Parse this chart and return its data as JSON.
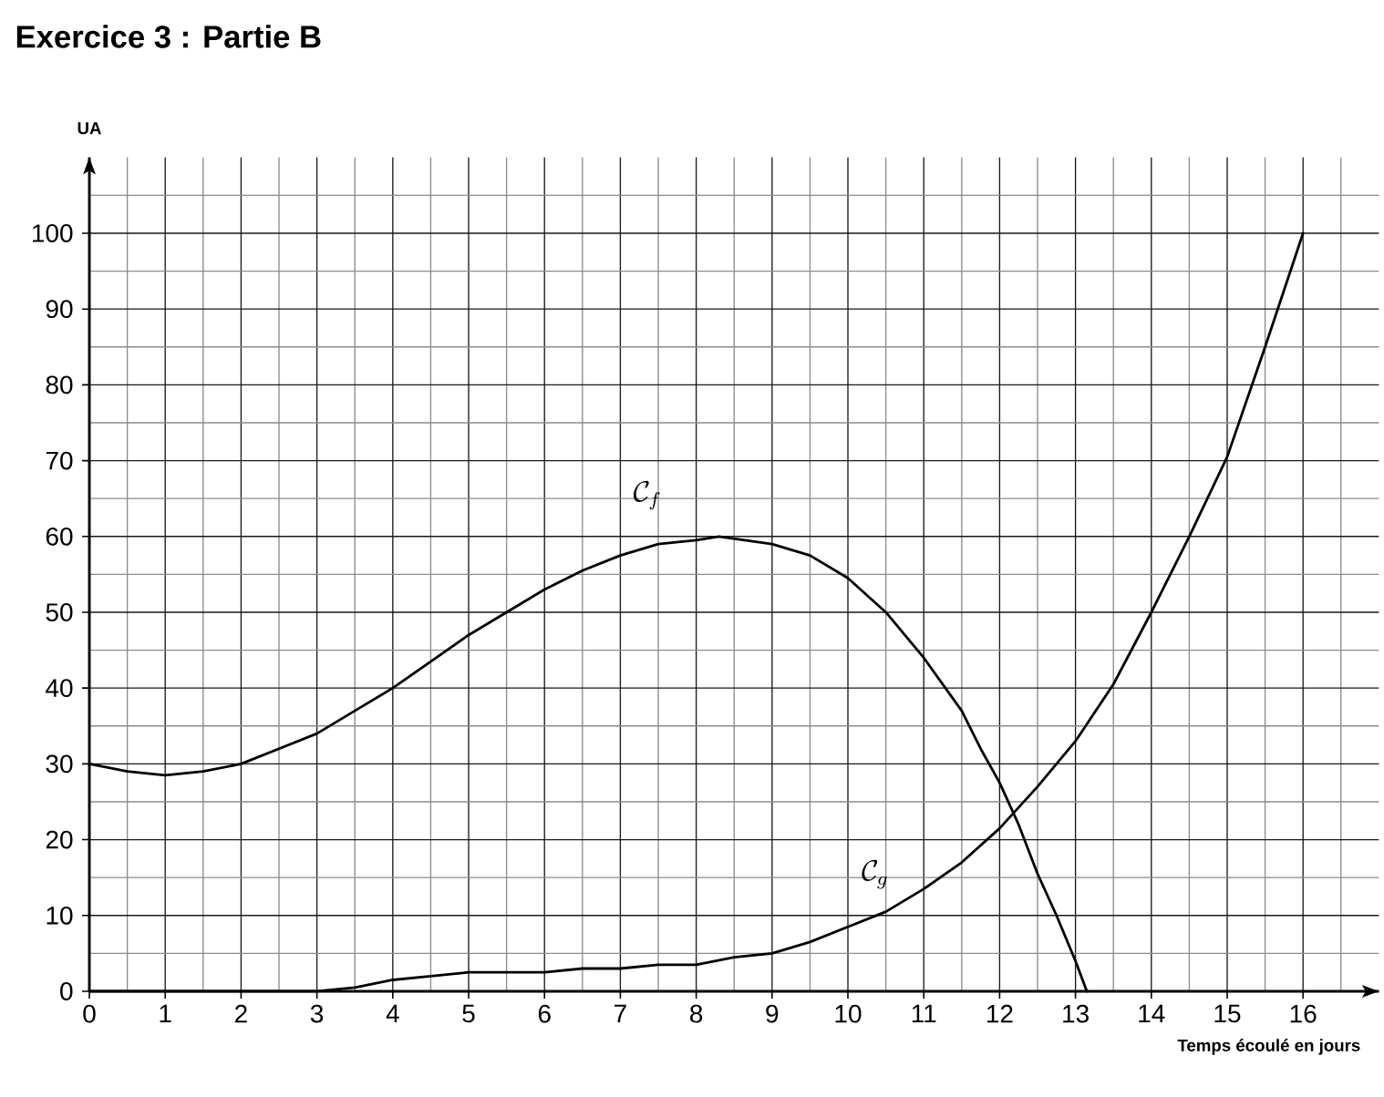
{
  "chart_data": {
    "type": "line",
    "title": "Exercice 3 : Partie B",
    "xlabel": "Temps écoulé en jours",
    "ylabel": "UA",
    "xlim": [
      0,
      17
    ],
    "ylim": [
      0,
      110
    ],
    "xticks": [
      0,
      1,
      2,
      3,
      4,
      5,
      6,
      7,
      8,
      9,
      10,
      11,
      12,
      13,
      14,
      15,
      16
    ],
    "yticks": [
      0,
      10,
      20,
      30,
      40,
      50,
      60,
      70,
      80,
      90,
      100
    ],
    "grid": true,
    "series": [
      {
        "name": "\\mathcal{C}_f",
        "color": "#000000",
        "x": [
          0,
          0.5,
          1,
          1.5,
          2,
          2.5,
          3,
          3.5,
          4,
          4.5,
          5,
          5.5,
          6,
          6.5,
          7,
          7.5,
          8,
          8.3,
          9,
          9.5,
          10,
          10.5,
          11,
          11.5,
          11.75,
          12,
          12.25,
          12.5,
          12.75,
          13,
          13.15
        ],
        "values": [
          30,
          29,
          28.5,
          29,
          30,
          32,
          34,
          37,
          40,
          43.5,
          47,
          50,
          53,
          55.5,
          57.5,
          59,
          59.5,
          60,
          59,
          57.5,
          54.5,
          50,
          44,
          37,
          32,
          27.5,
          22,
          15.5,
          10,
          4,
          0
        ]
      },
      {
        "name": "\\mathcal{C}_g",
        "color": "#000000",
        "x": [
          0,
          1,
          2,
          3,
          3.5,
          4,
          4.5,
          5,
          5.5,
          6,
          6.5,
          7,
          7.5,
          8,
          8.5,
          9,
          9.5,
          10,
          10.5,
          11,
          11.5,
          12,
          12.5,
          13,
          13.5,
          14,
          14.5,
          15,
          15.5,
          16
        ],
        "values": [
          0,
          0,
          0,
          0,
          0.5,
          1.5,
          2,
          2.5,
          2.5,
          2.5,
          3,
          3,
          3.5,
          3.5,
          4.5,
          5,
          6.5,
          8.5,
          10.5,
          13.5,
          17,
          21.5,
          27,
          33,
          40.5,
          50,
          60,
          70.5,
          85,
          100
        ]
      }
    ]
  }
}
